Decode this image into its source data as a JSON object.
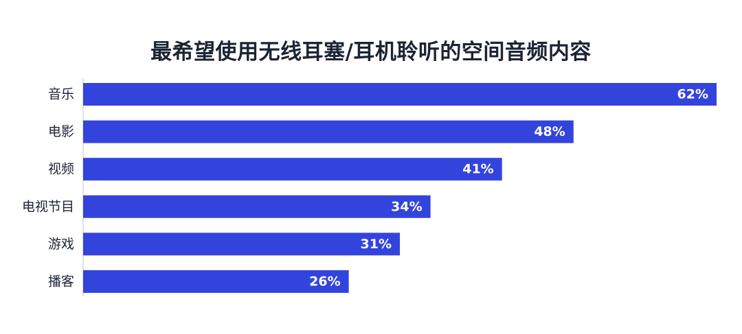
{
  "chart_data": {
    "type": "bar",
    "orientation": "horizontal",
    "title": "最希望使用无线耳塞/耳机聆听的空间音频内容",
    "categories": [
      "音乐",
      "电影",
      "视频",
      "电视节目",
      "游戏",
      "播客"
    ],
    "values": [
      62,
      48,
      41,
      34,
      31,
      26
    ],
    "value_labels": [
      "62%",
      "48%",
      "41%",
      "34%",
      "31%",
      "26%"
    ],
    "xlim": [
      0,
      62
    ],
    "grid": false,
    "bar_color": "#3344dd",
    "value_label_color": "#ffffff",
    "category_label_color": "#1b2433"
  }
}
